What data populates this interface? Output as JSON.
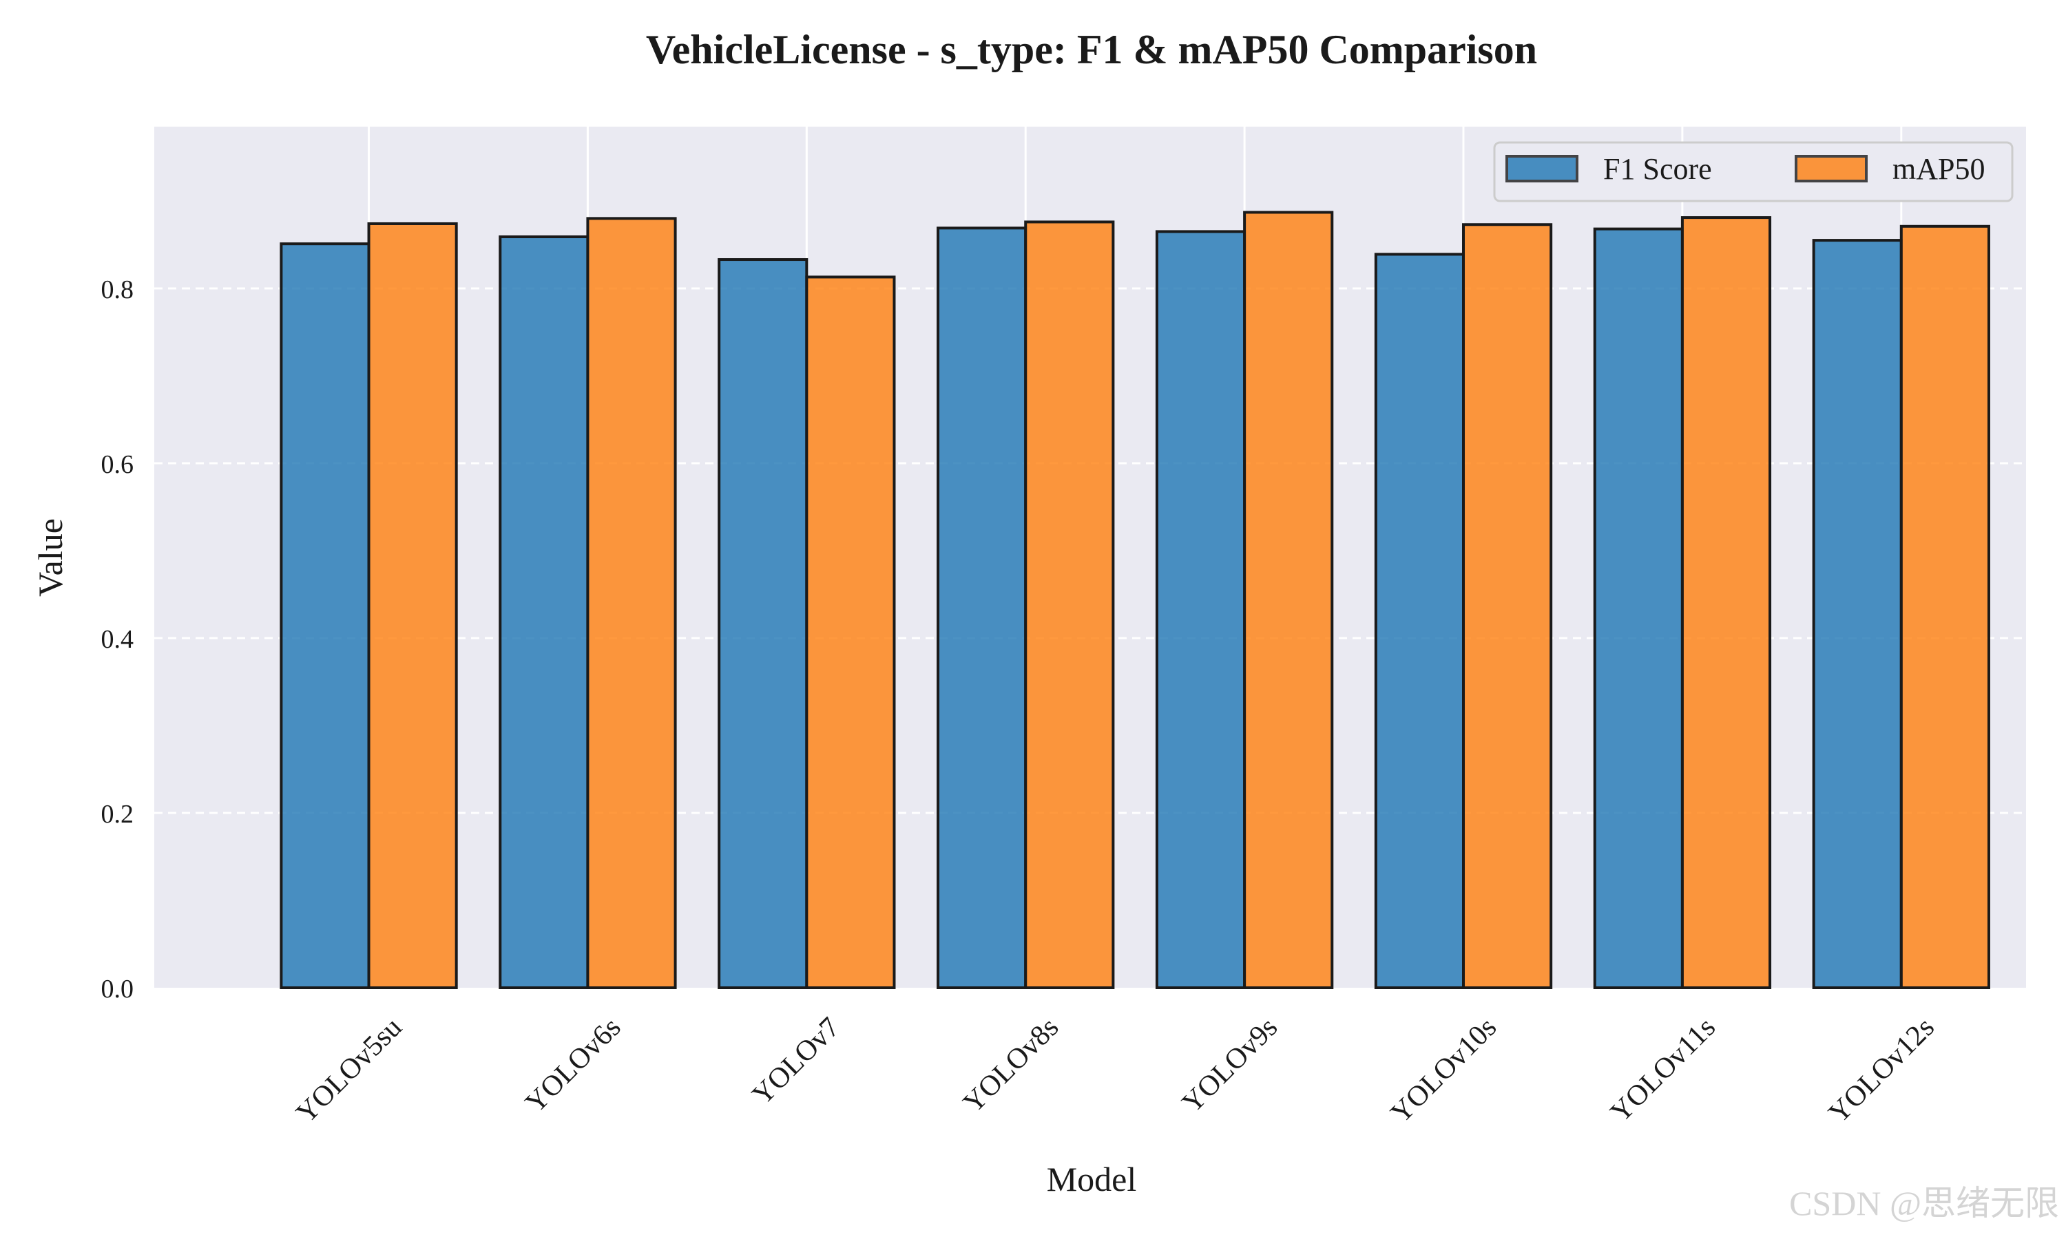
{
  "chart_data": {
    "type": "bar",
    "title": "VehicleLicense - s_type: F1 & mAP50 Comparison",
    "xlabel": "Model",
    "ylabel": "Value",
    "categories": [
      "YOLOv5su",
      "YOLOv6s",
      "YOLOv7",
      "YOLOv8s",
      "YOLOv9s",
      "YOLOv10s",
      "YOLOv11s",
      "YOLOv12s"
    ],
    "series": [
      {
        "name": "F1 Score",
        "color": "#1f77b4",
        "values": [
          0.851,
          0.859,
          0.833,
          0.869,
          0.865,
          0.839,
          0.868,
          0.855
        ]
      },
      {
        "name": "mAP50",
        "color": "#ff7f0e",
        "values": [
          0.874,
          0.88,
          0.813,
          0.876,
          0.887,
          0.873,
          0.881,
          0.871
        ]
      }
    ],
    "ylim": [
      0,
      0.985
    ],
    "yticks": [
      "0.0",
      "0.2",
      "0.4",
      "0.6",
      "0.8"
    ],
    "grid": true,
    "legend_position": "top-right",
    "background": "#eaeaf2",
    "watermark": "CSDN @思绪无限"
  }
}
